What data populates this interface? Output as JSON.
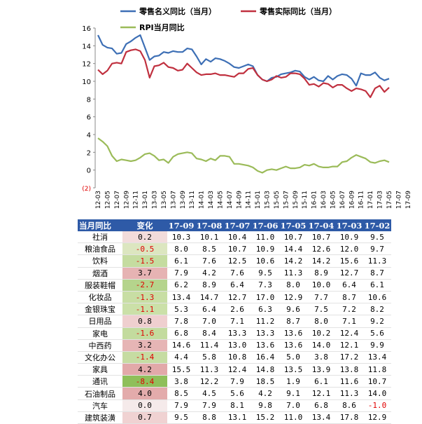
{
  "chart_data": {
    "type": "line",
    "legend": [
      {
        "name": "零售名义同比（当月）",
        "color": "#3d6fb5"
      },
      {
        "name": "零售实际同比（当月）",
        "color": "#c0303f"
      },
      {
        "name": "RPI当月同比",
        "color": "#9bbb59"
      }
    ],
    "ylim": [
      -2,
      16
    ],
    "yticks": [
      "(2)",
      "0",
      "2",
      "4",
      "6",
      "8",
      "10",
      "12",
      "14",
      "16"
    ],
    "xticks": [
      "12-03",
      "12-05",
      "12-07",
      "12-09",
      "12-11",
      "13-01",
      "13-03",
      "13-05",
      "13-07",
      "13-09",
      "13-11",
      "14-01",
      "14-03",
      "14-05",
      "14-07",
      "14-09",
      "14-11",
      "15-01",
      "15-03",
      "15-05",
      "15-07",
      "15-09",
      "15-11",
      "16-01",
      "16-03",
      "16-05",
      "16-07",
      "16-09",
      "16-11",
      "17-01",
      "17-03",
      "17-05",
      "17-07",
      "17-09"
    ],
    "x_start": "2012-03",
    "series": [
      {
        "name": "零售名义同比（当月）",
        "color": "#3d6fb5",
        "values": [
          15.2,
          14.1,
          13.8,
          13.7,
          13.1,
          13.2,
          14.2,
          14.5,
          14.9,
          15.2,
          13.8,
          12.4,
          12.8,
          12.9,
          13.3,
          13.2,
          13.4,
          13.3,
          13.3,
          13.7,
          13.6,
          12.8,
          11.9,
          12.5,
          12.2,
          12.6,
          12.5,
          12.3,
          12.0,
          11.6,
          11.5,
          11.7,
          11.9,
          11.7,
          10.7,
          10.2,
          10.0,
          10.4,
          10.5,
          10.8,
          10.9,
          11.0,
          11.2,
          11.1,
          10.5,
          10.2,
          10.5,
          10.1,
          10.0,
          10.6,
          10.2,
          10.6,
          10.8,
          10.7,
          10.3,
          9.5,
          10.9,
          10.7,
          10.7,
          11.0,
          10.4,
          10.1,
          10.3
        ]
      },
      {
        "name": "零售实际同比（当月）",
        "color": "#c0303f",
        "values": [
          11.3,
          10.8,
          11.2,
          12.0,
          12.1,
          12.0,
          13.3,
          13.5,
          13.6,
          13.4,
          12.4,
          10.4,
          11.7,
          11.8,
          12.1,
          11.6,
          11.5,
          11.2,
          11.3,
          12.0,
          11.5,
          11.0,
          10.7,
          10.8,
          10.8,
          10.9,
          10.7,
          10.7,
          10.6,
          10.5,
          10.9,
          10.9,
          11.4,
          11.5,
          10.7,
          10.2,
          10.0,
          10.2,
          10.6,
          10.4,
          10.5,
          10.9,
          10.9,
          10.8,
          10.3,
          9.6,
          9.7,
          9.4,
          9.8,
          9.7,
          9.3,
          9.6,
          9.6,
          9.2,
          8.9,
          9.2,
          9.1,
          8.9,
          8.2,
          9.2,
          9.5,
          8.8,
          9.3
        ]
      },
      {
        "name": "RPI当月同比",
        "color": "#9bbb59",
        "values": [
          3.6,
          3.2,
          2.7,
          1.6,
          1.0,
          1.2,
          1.1,
          1.0,
          1.1,
          1.4,
          1.8,
          1.9,
          1.6,
          1.1,
          1.2,
          0.8,
          1.5,
          1.8,
          1.9,
          2.0,
          1.9,
          1.3,
          1.2,
          1.0,
          1.3,
          1.1,
          1.6,
          1.6,
          1.5,
          0.7,
          0.7,
          0.6,
          0.5,
          0.3,
          -0.1,
          -0.3,
          0.0,
          0.1,
          0.0,
          0.2,
          0.4,
          0.2,
          0.2,
          0.3,
          0.6,
          0.5,
          0.7,
          0.4,
          0.3,
          0.3,
          0.4,
          0.4,
          0.9,
          1.0,
          1.4,
          1.7,
          1.5,
          1.3,
          0.9,
          0.8,
          1.0,
          1.1,
          0.9
        ]
      }
    ]
  },
  "table": {
    "headers": [
      "当月同比",
      "变化",
      "17-09",
      "17-08",
      "17-07",
      "17-06",
      "17-05",
      "17-04",
      "17-03",
      "17-02"
    ],
    "rows": [
      {
        "cat": "社消",
        "chg": "0.2",
        "chg_color": "#f2dcdb",
        "vals": [
          "10.3",
          "10.1",
          "10.4",
          "11.0",
          "10.7",
          "10.7",
          "10.9",
          "9.5"
        ]
      },
      {
        "cat": "粮油食品",
        "chg": "-0.5",
        "chg_color": "#dce6c0",
        "vals": [
          "8.0",
          "8.5",
          "10.7",
          "10.9",
          "14.4",
          "12.6",
          "12.0",
          "9.7"
        ]
      },
      {
        "cat": "饮料",
        "chg": "-1.5",
        "chg_color": "#c5dca0",
        "vals": [
          "6.1",
          "7.6",
          "12.5",
          "10.6",
          "14.2",
          "14.2",
          "15.6",
          "11.3"
        ]
      },
      {
        "cat": "烟酒",
        "chg": "3.7",
        "chg_color": "#e6b3b3",
        "vals": [
          "7.9",
          "4.2",
          "7.6",
          "9.5",
          "11.3",
          "8.9",
          "12.7",
          "8.7"
        ]
      },
      {
        "cat": "服装鞋帽",
        "chg": "-2.7",
        "chg_color": "#b5d48c",
        "vals": [
          "6.2",
          "8.9",
          "6.4",
          "7.3",
          "8.0",
          "10.0",
          "6.4",
          "6.1"
        ]
      },
      {
        "cat": "化妆品",
        "chg": "-1.3",
        "chg_color": "#c8dea4",
        "vals": [
          "13.4",
          "14.7",
          "12.7",
          "17.0",
          "12.9",
          "7.7",
          "8.7",
          "10.6"
        ]
      },
      {
        "cat": "金银珠宝",
        "chg": "-1.1",
        "chg_color": "#cbe0a8",
        "vals": [
          "5.3",
          "6.4",
          "2.6",
          "6.3",
          "9.6",
          "7.5",
          "7.2",
          "8.2"
        ]
      },
      {
        "cat": "日用品",
        "chg": "0.8",
        "chg_color": "#efcfcf",
        "vals": [
          "7.8",
          "7.0",
          "7.1",
          "11.2",
          "8.7",
          "8.0",
          "7.1",
          "9.2"
        ]
      },
      {
        "cat": "家电",
        "chg": "-1.6",
        "chg_color": "#c3db9e",
        "vals": [
          "6.8",
          "8.4",
          "13.3",
          "13.3",
          "13.6",
          "10.2",
          "12.4",
          "5.6"
        ]
      },
      {
        "cat": "中西药",
        "chg": "3.2",
        "chg_color": "#e6b5b5",
        "vals": [
          "14.6",
          "11.4",
          "13.0",
          "13.6",
          "13.6",
          "14.0",
          "12.1",
          "9.9"
        ]
      },
      {
        "cat": "文化办公",
        "chg": "-1.4",
        "chg_color": "#c6dca2",
        "vals": [
          "4.4",
          "5.8",
          "10.8",
          "16.4",
          "5.0",
          "3.8",
          "17.2",
          "13.4"
        ]
      },
      {
        "cat": "家具",
        "chg": "4.2",
        "chg_color": "#e2a9a9",
        "vals": [
          "15.5",
          "11.3",
          "12.4",
          "14.8",
          "13.5",
          "13.9",
          "13.8",
          "11.8"
        ]
      },
      {
        "cat": "通讯",
        "chg": "-8.4",
        "chg_color": "#8fbf5a",
        "vals": [
          "3.8",
          "12.2",
          "7.9",
          "18.5",
          "1.9",
          "6.1",
          "11.6",
          "10.7"
        ]
      },
      {
        "cat": "石油制品",
        "chg": "4.0",
        "chg_color": "#e3abab",
        "vals": [
          "8.5",
          "4.5",
          "5.6",
          "4.2",
          "9.1",
          "12.1",
          "11.3",
          "14.0"
        ]
      },
      {
        "cat": "汽车",
        "chg": "0.0",
        "chg_color": "#f5eaea",
        "vals": [
          "7.9",
          "7.9",
          "8.1",
          "9.8",
          "7.0",
          "6.8",
          "8.6",
          "-1.0"
        ]
      },
      {
        "cat": "建筑装潢",
        "chg": "0.7",
        "chg_color": "#f0d2d2",
        "vals": [
          "9.5",
          "8.8",
          "13.1",
          "15.2",
          "11.0",
          "13.4",
          "17.8",
          "12.9"
        ]
      }
    ]
  }
}
